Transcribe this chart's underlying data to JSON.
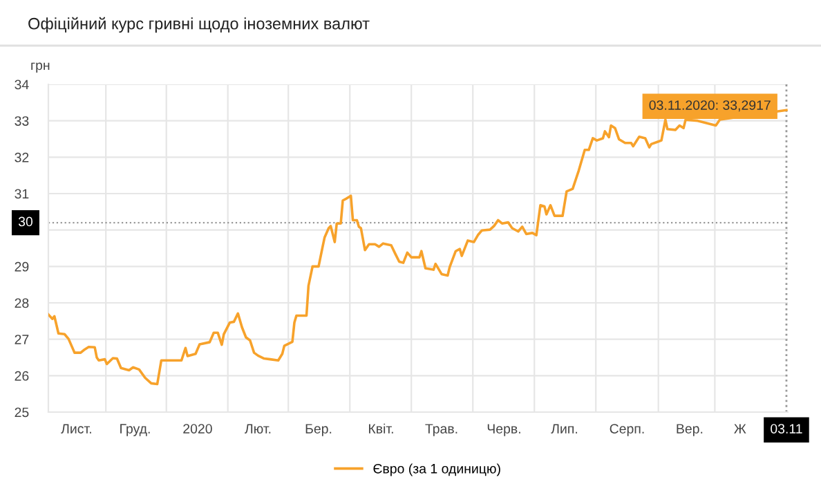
{
  "chart_data": {
    "type": "line",
    "title": "Офіційний курс гривні щодо іноземних валют",
    "ylabel": "грн",
    "ylim": [
      25,
      34
    ],
    "yticks": [
      25,
      26,
      27,
      28,
      29,
      {
        "value": 30,
        "label": null
      },
      31,
      32,
      33,
      34
    ],
    "grid": true,
    "legend": "bottom",
    "marker": "none",
    "line_style": "solid",
    "ref_lines": [
      {
        "axis": "y",
        "value": 30.2,
        "label": "30",
        "color": "#999999",
        "line_style": "dotted"
      },
      {
        "axis": "x",
        "value": "03.11",
        "color": "#999999",
        "line_style": "dotted"
      }
    ],
    "annotations": [
      {
        "text": "03.11.2020: 33,2917",
        "x": "03.11",
        "y": 33.2917
      }
    ],
    "categories": [
      null,
      null,
      null,
      null,
      null,
      null,
      null,
      null,
      null,
      null,
      null,
      null,
      null,
      null,
      "Лист.",
      null,
      null,
      null,
      null,
      null,
      null,
      null,
      null,
      null,
      null,
      null,
      null,
      null,
      null,
      null,
      null,
      null,
      null,
      null,
      null,
      null,
      null,
      null,
      null,
      null,
      null,
      null,
      null,
      "Груд.",
      null,
      null,
      null,
      null,
      null,
      null,
      null,
      null,
      null,
      null,
      null,
      null,
      null,
      null,
      null,
      null,
      null,
      null,
      null,
      null,
      null,
      null,
      null,
      null,
      null,
      null,
      null,
      null,
      null,
      null,
      "2020",
      null,
      null,
      null,
      null,
      null,
      null,
      null,
      null,
      null,
      null,
      null,
      null,
      null,
      null,
      null,
      null,
      null,
      null,
      null,
      null,
      null,
      null,
      null,
      null,
      null,
      null,
      null,
      null,
      null,
      "Лют.",
      null,
      null,
      null,
      null,
      null,
      null,
      null,
      null,
      null,
      null,
      null,
      null,
      null,
      null,
      null,
      null,
      null,
      null,
      null,
      null,
      null,
      null,
      null,
      null,
      null,
      null,
      null,
      null,
      null,
      "Бер.",
      null,
      null,
      null,
      null,
      null,
      null,
      null,
      null,
      null,
      null,
      null,
      null,
      null,
      null,
      null,
      null,
      null,
      null,
      null,
      null,
      null,
      null,
      null,
      null,
      null,
      null,
      null,
      null,
      null,
      null,
      "Квіт.",
      null,
      null,
      null,
      null,
      null,
      null,
      null,
      null,
      null,
      null,
      null,
      null,
      null,
      null,
      null,
      null,
      null,
      null,
      null,
      null,
      null,
      null,
      null,
      null,
      null,
      null,
      null,
      null,
      null,
      "Трав.",
      null,
      null,
      null,
      null,
      null,
      null,
      null,
      null,
      null,
      null,
      null,
      null,
      null,
      null,
      null,
      null,
      null,
      null,
      null,
      null,
      null,
      null,
      null,
      null,
      null,
      null,
      null,
      null,
      null,
      null,
      "Черв.",
      null,
      null,
      null,
      null,
      null,
      null,
      null,
      null,
      null,
      null,
      null,
      null,
      null,
      null,
      null,
      null,
      null,
      null,
      null,
      null,
      null,
      null,
      null,
      null,
      null,
      null,
      null,
      null,
      null,
      "Лип.",
      null,
      null,
      null,
      null,
      null,
      null,
      null,
      null,
      null,
      null,
      null,
      null,
      null,
      null,
      null,
      null,
      null,
      null,
      null,
      null,
      null,
      null,
      null,
      null,
      null,
      null,
      null,
      null,
      null,
      null,
      "Серп.",
      null,
      null,
      null,
      null,
      null,
      null,
      null,
      null,
      null,
      null,
      null,
      null,
      null,
      null,
      null,
      null,
      null,
      null,
      null,
      null,
      null,
      null,
      null,
      null,
      null,
      null,
      null,
      null,
      null,
      null,
      "Вер.",
      null,
      null,
      null,
      null,
      null,
      null,
      null,
      null,
      null,
      null,
      null,
      null,
      null,
      null,
      null,
      null,
      null,
      null,
      null,
      null,
      null,
      null,
      null,
      null,
      "Ж",
      null,
      null,
      null,
      null,
      null,
      null,
      null,
      null,
      null,
      null,
      null,
      null,
      null,
      null,
      null,
      null,
      null,
      null,
      null,
      null,
      null,
      null,
      "03.11"
    ],
    "series": [
      {
        "name": "Євро (за 1 одиницю)",
        "color": "#f7a22b",
        "values": [
          27.68,
          null,
          27.56,
          27.63,
          null,
          27.16,
          null,
          null,
          27.14,
          null,
          27.01,
          null,
          null,
          26.63,
          null,
          null,
          26.63,
          null,
          26.72,
          null,
          26.79,
          null,
          null,
          26.78,
          26.5,
          26.42,
          null,
          null,
          26.45,
          26.32,
          null,
          null,
          26.48,
          null,
          26.47,
          null,
          26.21,
          null,
          null,
          null,
          26.15,
          null,
          26.23,
          null,
          null,
          26.17,
          null,
          null,
          25.94,
          null,
          null,
          25.79,
          null,
          null,
          25.77,
          null,
          26.42,
          null,
          null,
          null,
          null,
          null,
          null,
          null,
          null,
          null,
          26.42,
          null,
          26.76,
          26.54,
          null,
          null,
          null,
          26.6,
          null,
          26.86,
          null,
          null,
          null,
          null,
          26.92,
          null,
          27.18,
          null,
          27.18,
          null,
          26.85,
          27.14,
          null,
          null,
          27.46,
          null,
          27.48,
          null,
          27.71,
          null,
          27.33,
          null,
          27.05,
          null,
          26.97,
          null,
          26.63,
          null,
          26.55,
          null,
          null,
          26.47,
          null,
          null,
          26.45,
          null,
          null,
          null,
          26.42,
          null,
          26.6,
          26.82,
          null,
          null,
          null,
          26.93,
          27.46,
          27.65,
          null,
          null,
          null,
          null,
          27.65,
          28.47,
          null,
          29.0,
          null,
          null,
          29.0,
          null,
          29.54,
          29.8,
          null,
          30.05,
          30.11,
          null,
          29.67,
          30.18,
          null,
          30.18,
          30.81,
          null,
          30.87,
          null,
          30.94,
          30.27,
          null,
          30.27,
          30.09,
          30.05,
          null,
          29.45,
          null,
          29.61,
          null,
          null,
          29.61,
          null,
          29.54,
          null,
          29.63,
          null,
          null,
          null,
          29.58,
          null,
          29.35,
          null,
          29.13,
          null,
          29.1,
          null,
          29.38,
          null,
          29.25,
          null,
          null,
          null,
          29.25,
          29.42,
          null,
          28.95,
          null,
          null,
          null,
          28.91,
          29.07,
          null,
          null,
          28.79,
          null,
          null,
          28.75,
          28.98,
          null,
          null,
          29.42,
          null,
          29.48,
          29.29,
          null,
          null,
          29.71,
          null,
          null,
          29.67,
          null,
          29.86,
          null,
          29.99,
          null,
          null,
          null,
          30.01,
          null,
          30.11,
          null,
          30.27,
          null,
          30.18,
          null,
          null,
          30.21,
          null,
          30.05,
          null,
          null,
          29.96,
          null,
          30.09,
          null,
          29.89,
          null,
          null,
          29.92,
          null,
          29.86,
          null,
          30.68,
          null,
          30.65,
          30.43,
          null,
          30.68,
          null,
          30.39,
          null,
          null,
          null,
          30.39,
          null,
          31.06,
          null,
          null,
          31.13,
          null,
          null,
          31.63,
          null,
          null,
          32.2,
          null,
          32.2,
          null,
          32.52,
          null,
          32.46,
          null,
          null,
          32.52,
          32.71,
          null,
          32.55,
          32.87,
          null,
          32.8,
          null,
          32.49,
          null,
          null,
          32.39,
          null,
          null,
          32.39,
          32.3,
          null,
          null,
          32.56,
          null,
          null,
          32.52,
          null,
          32.27,
          32.36,
          null,
          null,
          32.42,
          null,
          32.46,
          null,
          33.03,
          32.77,
          null,
          null,
          null,
          32.75,
          null,
          32.87,
          null,
          32.8,
          33.03,
          null,
          null,
          null,
          null,
          null,
          33.0,
          null,
          null,
          null,
          null,
          null,
          null,
          null,
          null,
          32.87,
          null,
          33.03,
          null,
          null,
          null,
          null,
          null,
          null,
          null,
          null,
          null,
          null,
          null,
          null,
          null,
          null,
          null,
          null,
          null,
          null,
          null,
          null,
          null,
          null,
          null,
          null,
          null,
          null,
          null,
          null,
          null,
          null,
          null,
          null,
          33.2917
        ]
      }
    ]
  }
}
